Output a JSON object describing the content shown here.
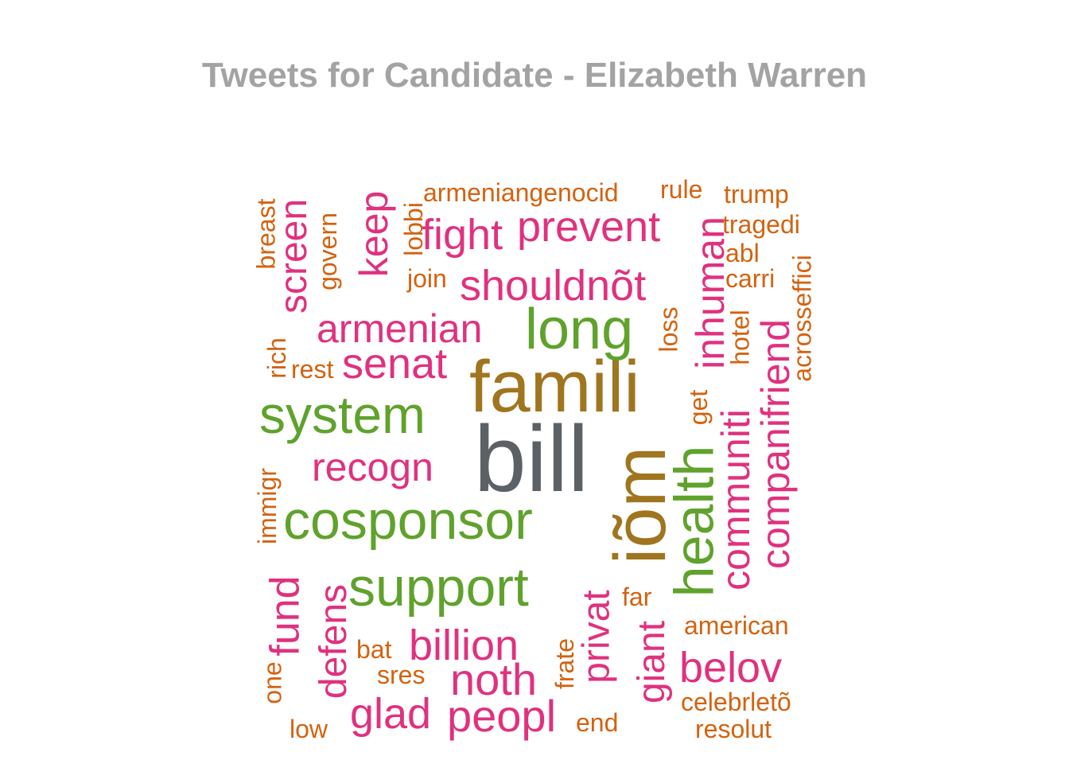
{
  "title": "Tweets for Candidate - Elizabeth Warren",
  "colors": {
    "gray": "#5c6166",
    "olive": "#a0751f",
    "green": "#5fa22c",
    "pink": "#e0317f",
    "orange": "#d4620f"
  },
  "words": [
    {
      "text": "bill",
      "color": "gray"
    },
    {
      "text": "famili",
      "color": "olive"
    },
    {
      "text": "iõm",
      "color": "olive"
    },
    {
      "text": "system",
      "color": "green"
    },
    {
      "text": "cosponsor",
      "color": "green"
    },
    {
      "text": "support",
      "color": "green"
    },
    {
      "text": "long",
      "color": "green"
    },
    {
      "text": "health",
      "color": "green"
    },
    {
      "text": "fight",
      "color": "pink"
    },
    {
      "text": "prevent",
      "color": "pink"
    },
    {
      "text": "shouldnõt",
      "color": "pink"
    },
    {
      "text": "armenian",
      "color": "pink"
    },
    {
      "text": "senat",
      "color": "pink"
    },
    {
      "text": "recogn",
      "color": "pink"
    },
    {
      "text": "billion",
      "color": "pink"
    },
    {
      "text": "noth",
      "color": "pink"
    },
    {
      "text": "glad",
      "color": "pink"
    },
    {
      "text": "peopl",
      "color": "pink"
    },
    {
      "text": "belov",
      "color": "pink"
    },
    {
      "text": "keep",
      "color": "pink"
    },
    {
      "text": "screen",
      "color": "pink"
    },
    {
      "text": "inhuman",
      "color": "pink"
    },
    {
      "text": "communiti",
      "color": "pink"
    },
    {
      "text": "companifriend",
      "color": "pink"
    },
    {
      "text": "fund",
      "color": "pink"
    },
    {
      "text": "defens",
      "color": "pink"
    },
    {
      "text": "privat",
      "color": "pink"
    },
    {
      "text": "giant",
      "color": "pink"
    },
    {
      "text": "armeniangenocid",
      "color": "orange"
    },
    {
      "text": "rule",
      "color": "orange"
    },
    {
      "text": "trump",
      "color": "orange"
    },
    {
      "text": "tragedi",
      "color": "orange"
    },
    {
      "text": "abl",
      "color": "orange"
    },
    {
      "text": "carri",
      "color": "orange"
    },
    {
      "text": "join",
      "color": "orange"
    },
    {
      "text": "rest",
      "color": "orange"
    },
    {
      "text": "far",
      "color": "orange"
    },
    {
      "text": "american",
      "color": "orange"
    },
    {
      "text": "bat",
      "color": "orange"
    },
    {
      "text": "sres",
      "color": "orange"
    },
    {
      "text": "low",
      "color": "orange"
    },
    {
      "text": "end",
      "color": "orange"
    },
    {
      "text": "celebrletõ",
      "color": "orange"
    },
    {
      "text": "resolut",
      "color": "orange"
    },
    {
      "text": "breast",
      "color": "orange"
    },
    {
      "text": "govern",
      "color": "orange"
    },
    {
      "text": "lobbi",
      "color": "orange"
    },
    {
      "text": "rich",
      "color": "orange"
    },
    {
      "text": "immigr",
      "color": "orange"
    },
    {
      "text": "one",
      "color": "orange"
    },
    {
      "text": "frate",
      "color": "orange"
    },
    {
      "text": "loss",
      "color": "orange"
    },
    {
      "text": "get",
      "color": "orange"
    },
    {
      "text": "hotel",
      "color": "orange"
    },
    {
      "text": "acrosseffici",
      "color": "orange"
    }
  ]
}
